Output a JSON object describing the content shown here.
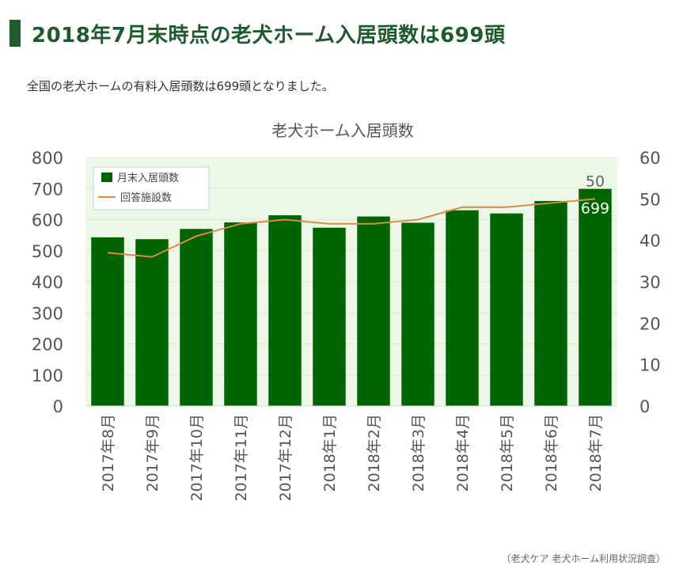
{
  "heading": "2018年7月末時点の老犬ホーム入居頭数は699頭",
  "lead": "全国の老犬ホームの有料入居頭数は699頭となりました。",
  "source": "（老犬ケア 老犬ホーム利用状況調査）",
  "colors": {
    "heading": "#1e5a2c",
    "heading_bar": "#1f5c2e",
    "bar": "#006400",
    "line": "#e08a3c",
    "plot_bg": "#eef8e8"
  },
  "chart_data": {
    "type": "bar",
    "title": "老犬ホーム入居頭数",
    "categories": [
      "2017年8月",
      "2017年9月",
      "2017年10月",
      "2017年11月",
      "2017年12月",
      "2018年1月",
      "2018年2月",
      "2018年3月",
      "2018年4月",
      "2018年5月",
      "2018年6月",
      "2018年7月"
    ],
    "series": [
      {
        "name": "月末入居頭数",
        "type": "bar",
        "axis": "left",
        "values": [
          543,
          537,
          570,
          591,
          614,
          574,
          610,
          590,
          630,
          620,
          660,
          699
        ]
      },
      {
        "name": "回答施設数",
        "type": "line",
        "axis": "right",
        "values": [
          37,
          36,
          41,
          44,
          45,
          44,
          44,
          45,
          48,
          48,
          49,
          50
        ]
      }
    ],
    "y_left": {
      "min": 0,
      "max": 800,
      "ticks": [
        "0",
        "100",
        "200",
        "300",
        "400",
        "500",
        "600",
        "700",
        "800"
      ]
    },
    "y_right": {
      "min": 0,
      "max": 60,
      "ticks": [
        "0",
        "10",
        "20",
        "30",
        "40",
        "50",
        "60"
      ]
    },
    "data_labels": {
      "bar_last": "699",
      "line_last": "50"
    },
    "legend_position": "top-left"
  }
}
